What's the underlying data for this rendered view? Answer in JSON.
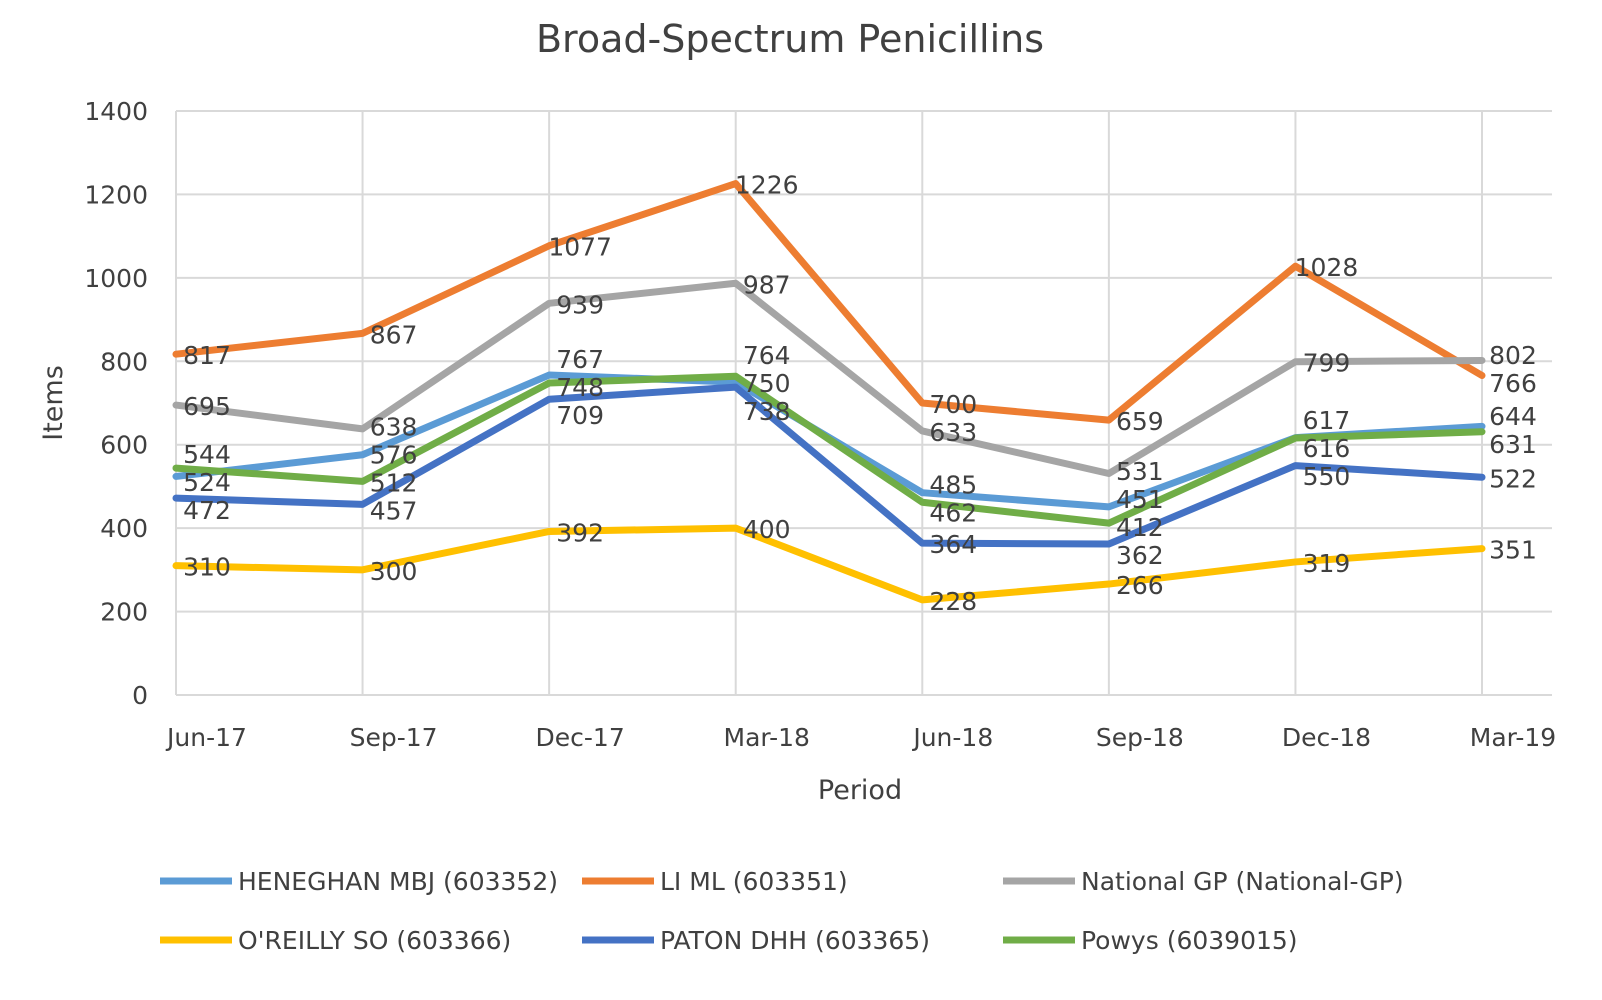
{
  "chart_data": {
    "type": "line",
    "title": "Broad-Spectrum Penicillins",
    "xlabel": "Period",
    "ylabel": "Items",
    "ylim": [
      0,
      1400
    ],
    "yticks": [
      0,
      200,
      400,
      600,
      800,
      1000,
      1200,
      1400
    ],
    "grid": true,
    "legend_placement": "bottom",
    "categories": [
      "Jun-17",
      "Sep-17",
      "Dec-17",
      "Mar-18",
      "Jun-18",
      "Sep-18",
      "Dec-18",
      "Mar-19"
    ],
    "series": [
      {
        "name": "HENEGHAN MBJ (603352)",
        "color": "#5B9BD5",
        "values": [
          524,
          576,
          767,
          750,
          485,
          451,
          617,
          644
        ]
      },
      {
        "name": "LI ML (603351)",
        "color": "#ED7D31",
        "values": [
          817,
          867,
          1077,
          1226,
          700,
          659,
          1028,
          766
        ]
      },
      {
        "name": "National GP (National-GP)",
        "color": "#A5A5A5",
        "values": [
          695,
          638,
          939,
          987,
          633,
          531,
          799,
          802
        ]
      },
      {
        "name": "O'REILLY SO (603366)",
        "color": "#FFC000",
        "values": [
          310,
          300,
          392,
          400,
          228,
          266,
          319,
          351
        ]
      },
      {
        "name": "PATON DHH (603365)",
        "color": "#4472C4",
        "values": [
          472,
          457,
          709,
          738,
          364,
          362,
          550,
          522
        ]
      },
      {
        "name": "Powys (6039015)",
        "color": "#70AD47",
        "values": [
          544,
          512,
          748,
          764,
          462,
          412,
          616,
          631
        ]
      }
    ]
  }
}
